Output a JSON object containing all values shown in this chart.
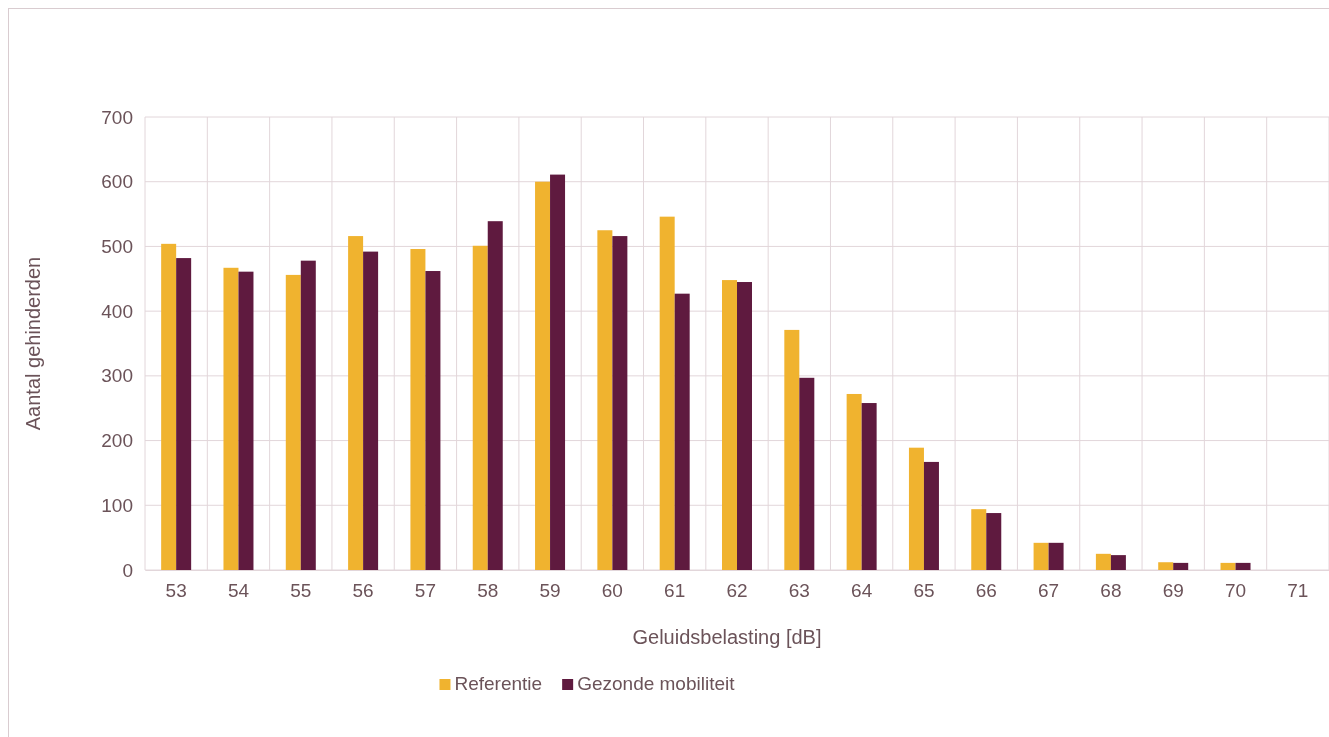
{
  "chart_data": {
    "type": "bar",
    "xlabel": "Geluidsbelasting [dB]",
    "ylabel": "Aantal gehinderden",
    "categories": [
      "53",
      "54",
      "55",
      "56",
      "57",
      "58",
      "59",
      "60",
      "61",
      "62",
      "63",
      "64",
      "65",
      "66",
      "67",
      "68",
      "69",
      "70",
      "71"
    ],
    "series": [
      {
        "name": "Referentie",
        "color": "#f0b32f",
        "values": [
          504,
          467,
          456,
          516,
          496,
          501,
          600,
          525,
          546,
          448,
          371,
          272,
          189,
          94,
          42,
          25,
          12,
          11,
          0
        ]
      },
      {
        "name": "Gezonde mobiliteit",
        "color": "#5f1a3f",
        "values": [
          482,
          461,
          478,
          492,
          462,
          539,
          611,
          516,
          427,
          445,
          297,
          258,
          167,
          88,
          42,
          23,
          11,
          11,
          0
        ]
      }
    ],
    "ylim": [
      0,
      700
    ],
    "yticks": [
      0,
      100,
      200,
      300,
      400,
      500,
      600,
      700
    ],
    "grid": true,
    "legend": "bottom"
  }
}
